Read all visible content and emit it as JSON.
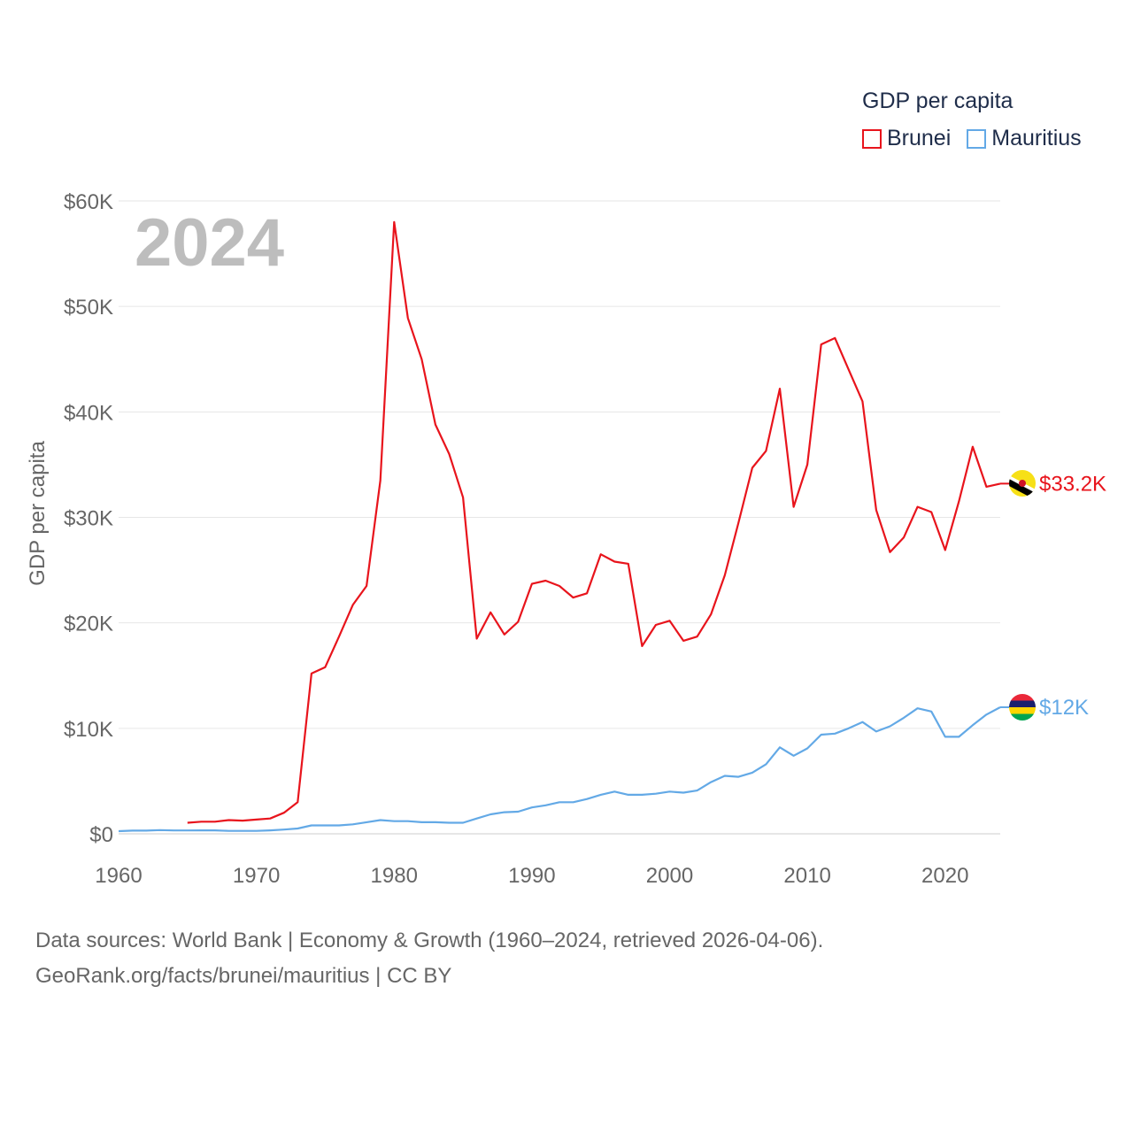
{
  "legend": {
    "title": "GDP per capita",
    "items": [
      {
        "label": "Brunei",
        "color": "#e8141c"
      },
      {
        "label": "Mauritius",
        "color": "#63a9e6"
      }
    ]
  },
  "footer": {
    "line1": "Data sources: World Bank | Economy & Growth (1960–2024, retrieved 2026-04-06).",
    "line2": "GeoRank.org/facts/brunei/mauritius | CC BY"
  },
  "chart_data": {
    "type": "line",
    "title": "GDP per capita",
    "year_label": "2024",
    "ylabel": "GDP per capita",
    "xlabel": "",
    "xlim": [
      1960,
      2024
    ],
    "ylim": [
      0,
      60000
    ],
    "x_ticks": [
      1960,
      1970,
      1980,
      1990,
      2000,
      2010,
      2020
    ],
    "y_ticks": [
      {
        "value": 0,
        "label": "$0"
      },
      {
        "value": 10000,
        "label": "$10K"
      },
      {
        "value": 20000,
        "label": "$20K"
      },
      {
        "value": 30000,
        "label": "$30K"
      },
      {
        "value": 40000,
        "label": "$40K"
      },
      {
        "value": 50000,
        "label": "$50K"
      },
      {
        "value": 60000,
        "label": "$60K"
      }
    ],
    "grid": true,
    "series": [
      {
        "name": "Brunei",
        "color": "#e8141c",
        "end_label": "$33.2K",
        "flag": "brunei-flag-icon",
        "x": [
          1965,
          1966,
          1967,
          1968,
          1969,
          1970,
          1971,
          1972,
          1973,
          1974,
          1975,
          1976,
          1977,
          1978,
          1979,
          1980,
          1981,
          1982,
          1983,
          1984,
          1985,
          1986,
          1987,
          1988,
          1989,
          1990,
          1991,
          1992,
          1993,
          1994,
          1995,
          1996,
          1997,
          1998,
          1999,
          2000,
          2001,
          2002,
          2003,
          2004,
          2005,
          2006,
          2007,
          2008,
          2009,
          2010,
          2011,
          2012,
          2013,
          2014,
          2015,
          2016,
          2017,
          2018,
          2019,
          2020,
          2021,
          2022,
          2023,
          2024
        ],
        "values": [
          1050,
          1150,
          1150,
          1300,
          1250,
          1350,
          1450,
          2000,
          3000,
          15200,
          15800,
          18700,
          21700,
          23500,
          33500,
          58000,
          48900,
          45000,
          38800,
          36000,
          31900,
          18500,
          21000,
          18900,
          20100,
          23700,
          24000,
          23500,
          22400,
          22800,
          26500,
          25800,
          25600,
          17800,
          19800,
          20200,
          18300,
          18700,
          20800,
          24500,
          29500,
          34700,
          36300,
          42200,
          31000,
          35000,
          46400,
          47000,
          44000,
          41000,
          30700,
          26700,
          28100,
          31000,
          30500,
          26900,
          31500,
          36700,
          32900,
          33200
        ]
      },
      {
        "name": "Mauritius",
        "color": "#63a9e6",
        "end_label": "$12K",
        "flag": "mauritius-flag-icon",
        "x": [
          1960,
          1961,
          1962,
          1963,
          1964,
          1965,
          1966,
          1967,
          1968,
          1969,
          1970,
          1971,
          1972,
          1973,
          1974,
          1975,
          1976,
          1977,
          1978,
          1979,
          1980,
          1981,
          1982,
          1983,
          1984,
          1985,
          1986,
          1987,
          1988,
          1989,
          1990,
          1991,
          1992,
          1993,
          1994,
          1995,
          1996,
          1997,
          1998,
          1999,
          2000,
          2001,
          2002,
          2003,
          2004,
          2005,
          2006,
          2007,
          2008,
          2009,
          2010,
          2011,
          2012,
          2013,
          2014,
          2015,
          2016,
          2017,
          2018,
          2019,
          2020,
          2021,
          2022,
          2023,
          2024
        ],
        "values": [
          250,
          300,
          300,
          350,
          320,
          320,
          330,
          330,
          280,
          280,
          280,
          330,
          400,
          500,
          800,
          800,
          800,
          900,
          1100,
          1300,
          1200,
          1200,
          1100,
          1100,
          1050,
          1050,
          1450,
          1850,
          2050,
          2100,
          2500,
          2700,
          3000,
          3000,
          3300,
          3700,
          4000,
          3700,
          3700,
          3800,
          4000,
          3900,
          4100,
          4900,
          5500,
          5400,
          5800,
          6600,
          8200,
          7400,
          8100,
          9400,
          9500,
          10000,
          10600,
          9700,
          10200,
          11000,
          11900,
          11600,
          9200,
          9200,
          10300,
          11300,
          12000
        ]
      }
    ]
  }
}
